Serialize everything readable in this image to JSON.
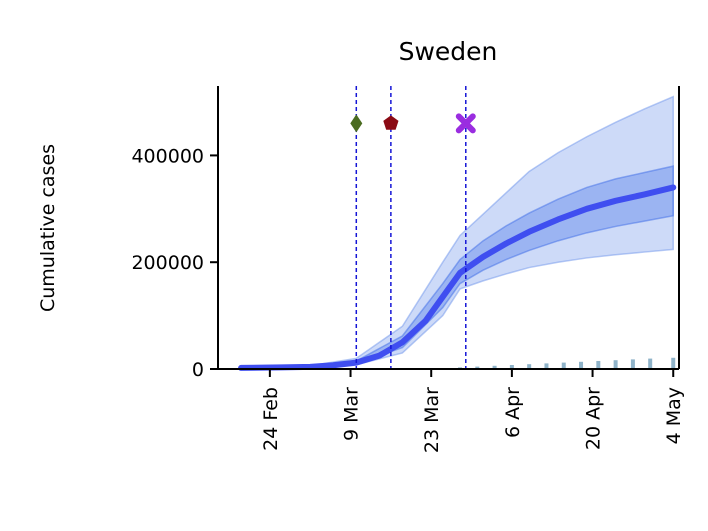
{
  "chart_data": {
    "type": "line",
    "title": "Sweden",
    "ylabel": "Cumulative cases",
    "xlabel": "",
    "x_axis": "date",
    "ylim": [
      0,
      530000
    ],
    "xlim": [
      "2020-02-15",
      "2020-05-05"
    ],
    "yticks": [
      {
        "value": 0,
        "label": "0"
      },
      {
        "value": 200000,
        "label": "200000"
      },
      {
        "value": 400000,
        "label": "400000"
      }
    ],
    "xticks": [
      {
        "date": "2020-02-24",
        "label": "24 Feb"
      },
      {
        "date": "2020-03-09",
        "label": "9 Mar"
      },
      {
        "date": "2020-03-23",
        "label": "23 Mar"
      },
      {
        "date": "2020-04-06",
        "label": "6 Apr"
      },
      {
        "date": "2020-04-20",
        "label": "20 Apr"
      },
      {
        "date": "2020-05-04",
        "label": "4 May"
      }
    ],
    "series": [
      {
        "role": "model-median",
        "color": "#3f4ef0",
        "points": [
          [
            "2020-02-19",
            2000
          ],
          [
            "2020-02-26",
            3000
          ],
          [
            "2020-03-02",
            4000
          ],
          [
            "2020-03-06",
            7000
          ],
          [
            "2020-03-10",
            12000
          ],
          [
            "2020-03-14",
            25000
          ],
          [
            "2020-03-18",
            50000
          ],
          [
            "2020-03-22",
            90000
          ],
          [
            "2020-03-25",
            135000
          ],
          [
            "2020-03-28",
            180000
          ],
          [
            "2020-04-01",
            210000
          ],
          [
            "2020-04-05",
            235000
          ],
          [
            "2020-04-09",
            257000
          ],
          [
            "2020-04-14",
            280000
          ],
          [
            "2020-04-19",
            300000
          ],
          [
            "2020-04-24",
            315000
          ],
          [
            "2020-04-29",
            327000
          ],
          [
            "2020-05-04",
            340000
          ]
        ]
      },
      {
        "role": "inner-band",
        "color": "#3f6ee8",
        "opacity": 0.35,
        "points": [
          [
            "2020-02-19",
            1500,
            2500
          ],
          [
            "2020-03-02",
            3500,
            4800
          ],
          [
            "2020-03-10",
            10000,
            15000
          ],
          [
            "2020-03-18",
            40000,
            62000
          ],
          [
            "2020-03-25",
            115000,
            160000
          ],
          [
            "2020-03-28",
            160000,
            205000
          ],
          [
            "2020-04-01",
            185000,
            240000
          ],
          [
            "2020-04-05",
            205000,
            268000
          ],
          [
            "2020-04-09",
            222000,
            292000
          ],
          [
            "2020-04-14",
            240000,
            318000
          ],
          [
            "2020-04-19",
            255000,
            340000
          ],
          [
            "2020-04-24",
            267000,
            356000
          ],
          [
            "2020-04-29",
            277000,
            368000
          ],
          [
            "2020-05-04",
            287000,
            380000
          ]
        ]
      },
      {
        "role": "outer-band",
        "color": "#6f96ec",
        "opacity": 0.35,
        "points": [
          [
            "2020-02-19",
            1000,
            3000
          ],
          [
            "2020-03-02",
            3000,
            6000
          ],
          [
            "2020-03-10",
            8000,
            20000
          ],
          [
            "2020-03-18",
            30000,
            80000
          ],
          [
            "2020-03-25",
            100000,
            200000
          ],
          [
            "2020-03-28",
            150000,
            250000
          ],
          [
            "2020-04-01",
            165000,
            290000
          ],
          [
            "2020-04-05",
            178000,
            330000
          ],
          [
            "2020-04-09",
            190000,
            370000
          ],
          [
            "2020-04-14",
            200000,
            405000
          ],
          [
            "2020-04-19",
            208000,
            435000
          ],
          [
            "2020-04-24",
            214000,
            462000
          ],
          [
            "2020-04-29",
            219000,
            487000
          ],
          [
            "2020-05-04",
            224000,
            510000
          ]
        ]
      }
    ],
    "observed_bars": {
      "color": "#8fb3c9",
      "points": [
        [
          "2020-03-28",
          3000
        ],
        [
          "2020-03-31",
          4500
        ],
        [
          "2020-04-03",
          6000
        ],
        [
          "2020-04-06",
          7500
        ],
        [
          "2020-04-09",
          9000
        ],
        [
          "2020-04-12",
          10500
        ],
        [
          "2020-04-15",
          12000
        ],
        [
          "2020-04-18",
          13500
        ],
        [
          "2020-04-21",
          15000
        ],
        [
          "2020-04-24",
          16500
        ],
        [
          "2020-04-27",
          18000
        ],
        [
          "2020-04-30",
          19500
        ],
        [
          "2020-05-04",
          21000
        ]
      ]
    },
    "interventions": [
      {
        "date": "2020-03-10",
        "color": "#4a6b1f",
        "marker": "diamond"
      },
      {
        "date": "2020-03-16",
        "color": "#8b0a14",
        "marker": "pentagon"
      },
      {
        "date": "2020-03-29",
        "color": "#9a2de0",
        "marker": "cross"
      }
    ],
    "intervention_marker_y": 460000,
    "vline_color": "#1515d6"
  }
}
